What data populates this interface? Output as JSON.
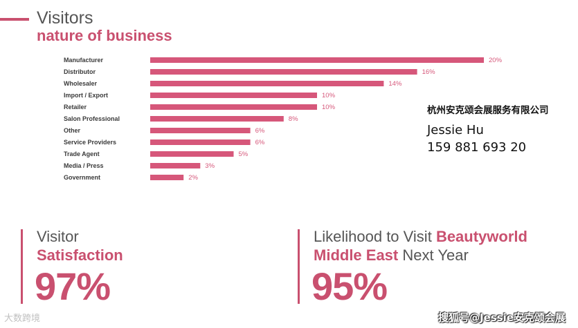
{
  "header": {
    "title": "Visitors",
    "subtitle": "nature of business"
  },
  "chart_data": {
    "type": "bar",
    "orientation": "horizontal",
    "title": "Visitors nature of business",
    "categories": [
      "Manufacturer",
      "Distributor",
      "Wholesaler",
      "Import / Export",
      "Retailer",
      "Salon Professional",
      "Other",
      "Service Providers",
      "Trade Agent",
      "Media / Press",
      "Government"
    ],
    "values": [
      20,
      16,
      14,
      10,
      10,
      8,
      6,
      6,
      5,
      3,
      2
    ],
    "value_labels": [
      "20%",
      "16%",
      "14%",
      "10%",
      "10%",
      "8%",
      "6%",
      "6%",
      "5%",
      "3%",
      "2%"
    ],
    "xlim": [
      0,
      20
    ],
    "grid": false,
    "bar_color": "#d6577a"
  },
  "contact": {
    "company": "杭州安克颂会展服务有限公司",
    "name": "Jessie Hu",
    "phone": "159 881 693 20"
  },
  "stat_satisfaction": {
    "label": "Visitor",
    "strong": "Satisfaction",
    "value": "97%"
  },
  "stat_return": {
    "line1_text": "Likelihood to Visit ",
    "line1_highlight": "Beautyworld",
    "line2_highlight": "Middle East",
    "line2_text": " Next Year",
    "value": "95%"
  },
  "watermarks": {
    "left": "大数跨境",
    "right": "搜狐号@Jessie安克颂会展"
  },
  "colors": {
    "accent": "#c9506f",
    "bar": "#d6577a"
  }
}
